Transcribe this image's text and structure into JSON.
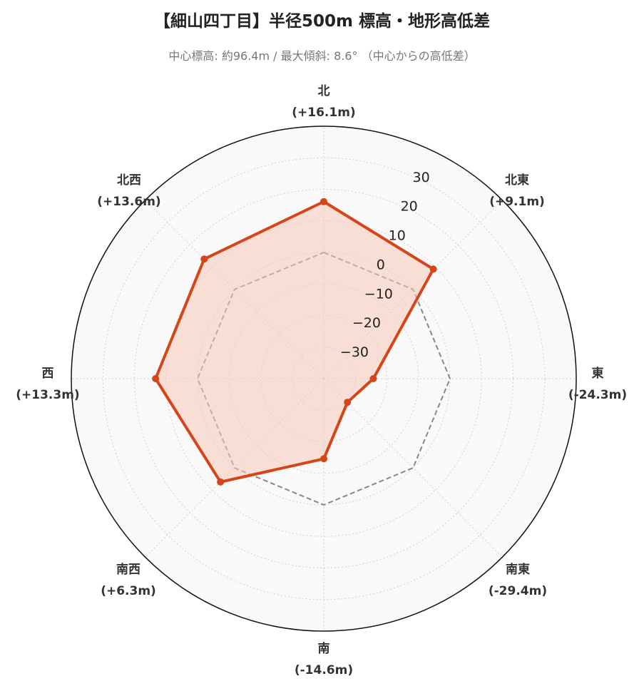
{
  "chart_data": {
    "type": "radar",
    "title": "【細山四丁目】半径500m 標高・地形高低差",
    "subtitle": "中心標高: 約96.4m / 最大傾斜: 8.6° （中心からの高低差）",
    "categories": [
      "北",
      "北東",
      "東",
      "南東",
      "南",
      "南西",
      "西",
      "北西"
    ],
    "category_values_text": [
      "(+16.1m)",
      "(+9.1m)",
      "(-24.3m)",
      "(-29.4m)",
      "(-14.6m)",
      "(+6.3m)",
      "(+13.3m)",
      "(+13.6m)"
    ],
    "values": [
      16.1,
      9.1,
      -24.3,
      -29.4,
      -14.6,
      6.3,
      13.3,
      13.6
    ],
    "reference_value": 0,
    "rlim": [
      -40,
      40
    ],
    "r_ticks": [
      -30,
      -20,
      -10,
      0,
      10,
      20,
      30
    ],
    "r_tick_labels": [
      "−30",
      "−20",
      "−10",
      "0",
      "10",
      "20",
      "30"
    ],
    "grid": true,
    "colors": {
      "series_line": "#d4461a",
      "series_fill": "#f9c9b8",
      "reference_line": "#888888",
      "background": "#f9f9f9",
      "outer_circle": "#111111"
    }
  }
}
